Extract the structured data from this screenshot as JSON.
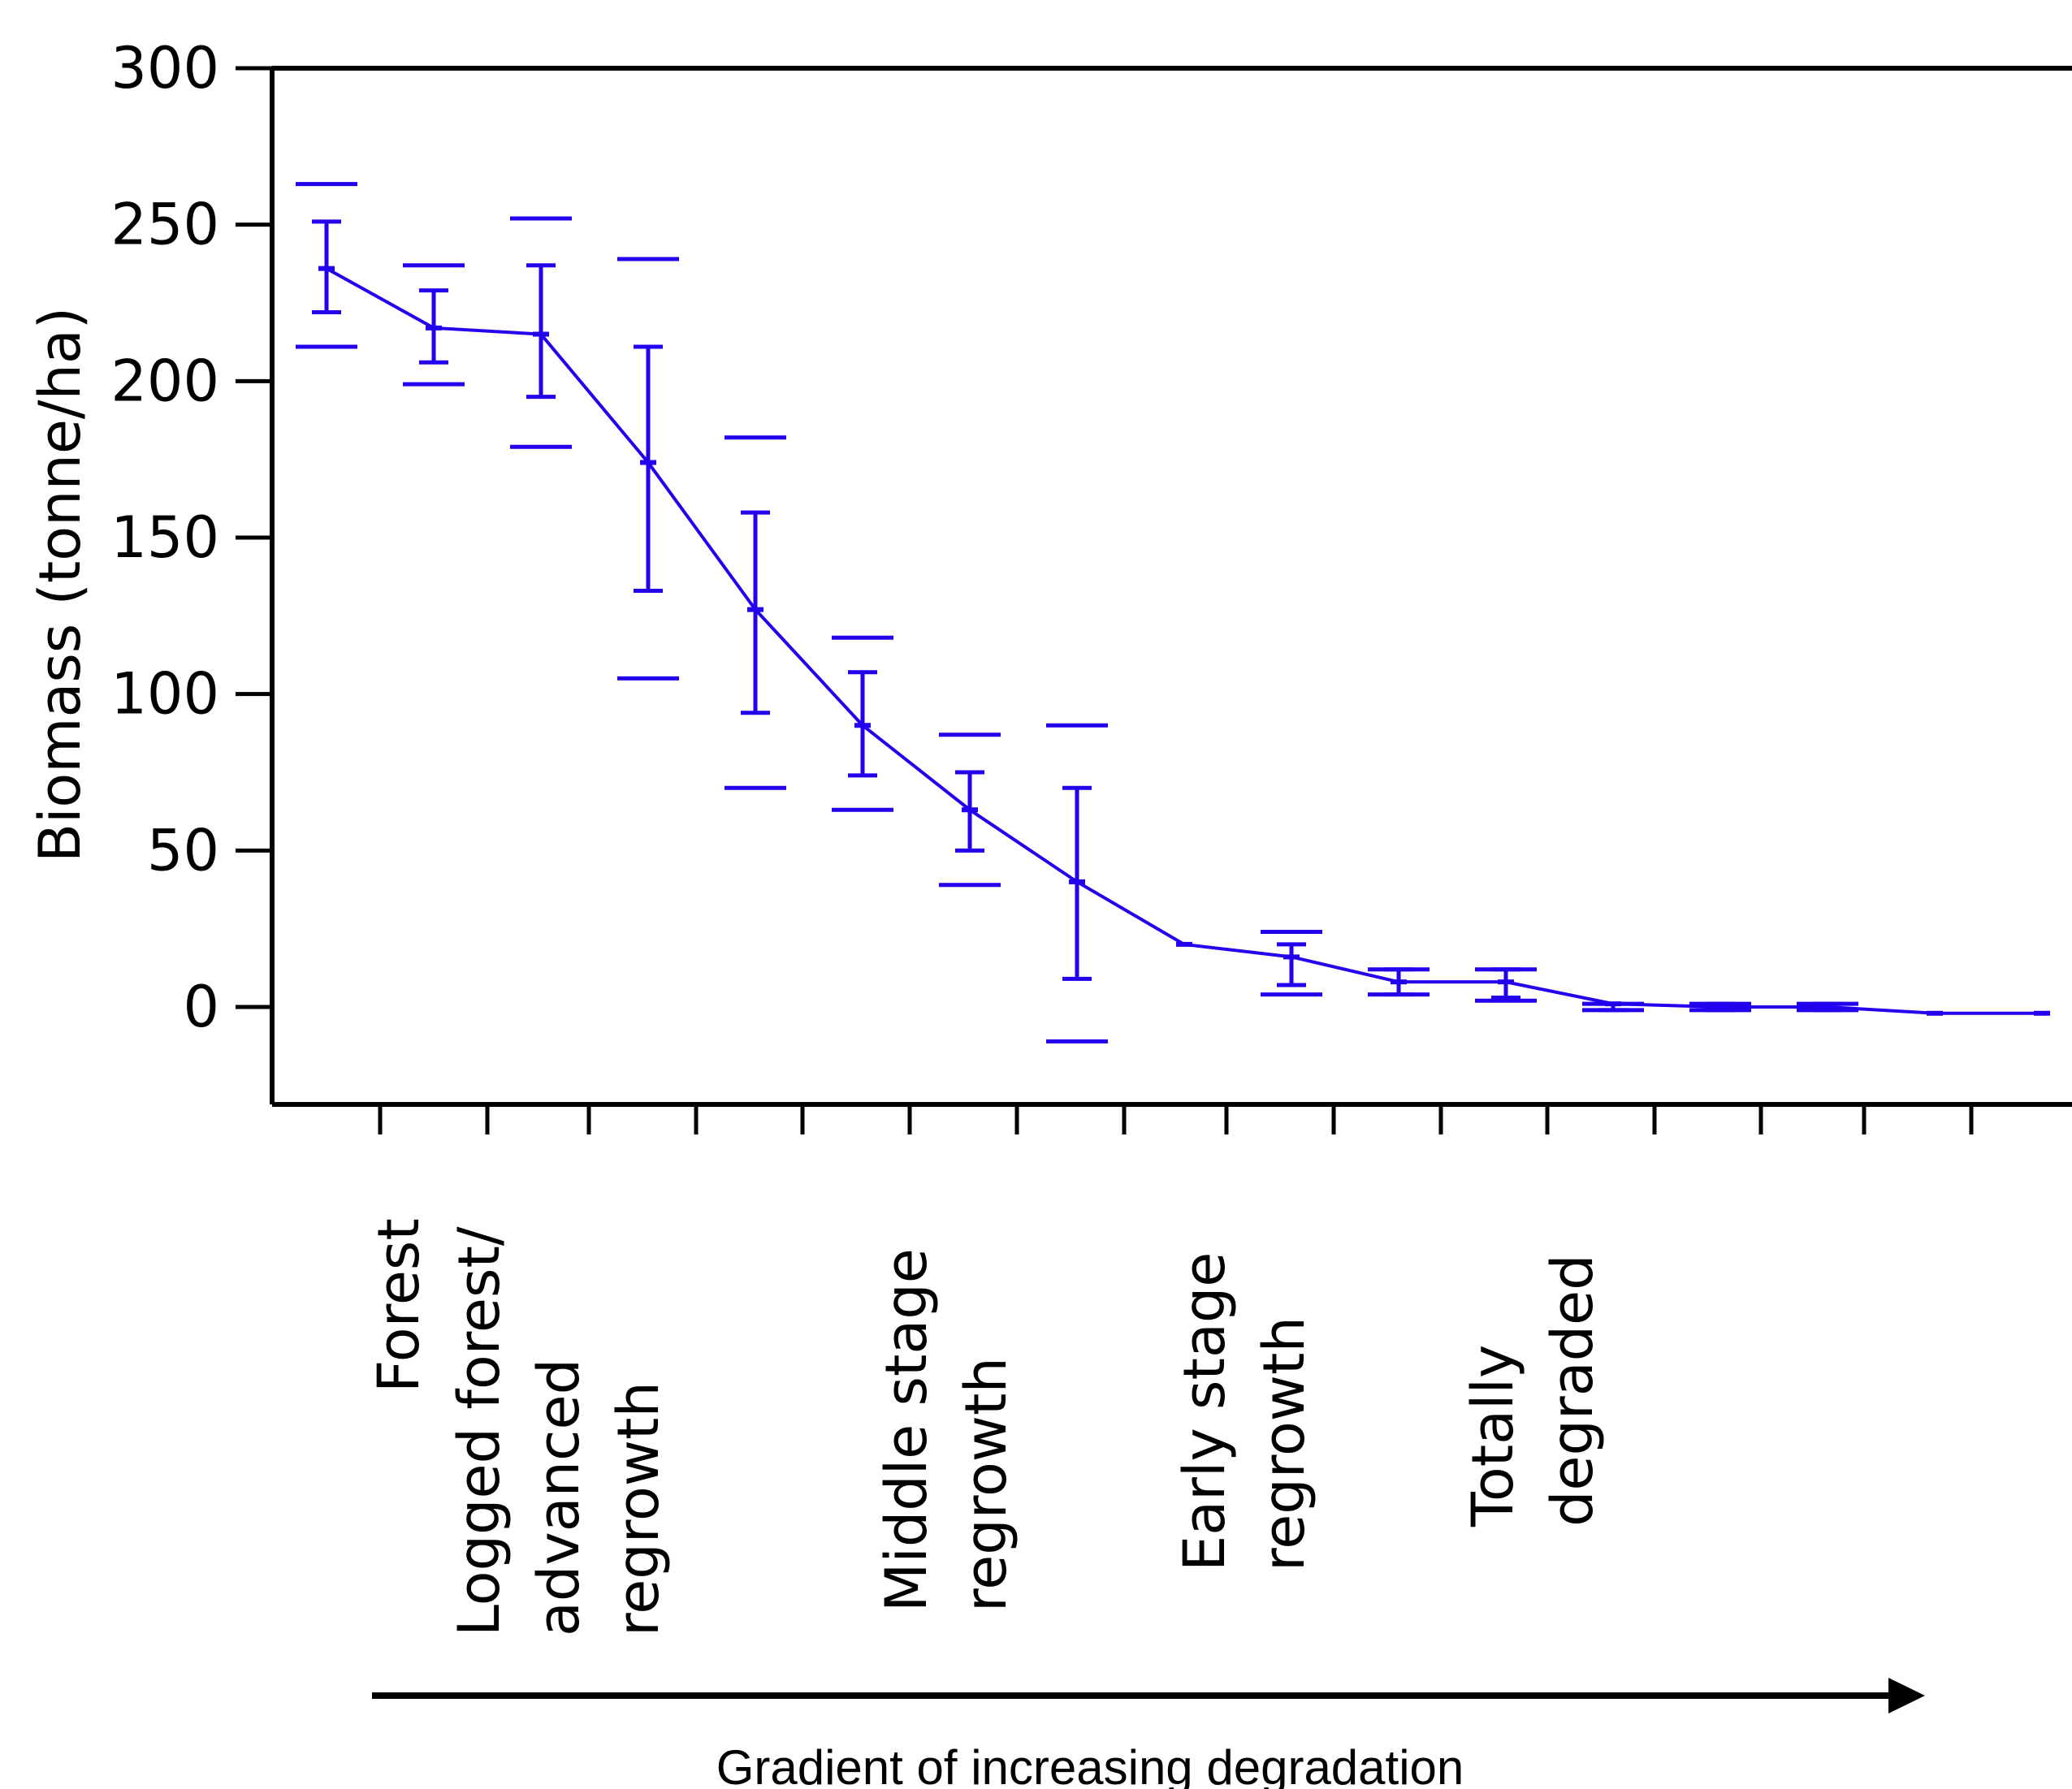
{
  "chart_data": {
    "type": "line",
    "title": "",
    "xlabel": "Gradient of increasing degradation",
    "ylabel": "Biomass (tonne/ha)",
    "ylim": [
      -31,
      300
    ],
    "yticks": [
      0,
      50,
      100,
      150,
      200,
      250,
      300
    ],
    "grid": false,
    "color": "#2200ee",
    "category_labels": [
      {
        "lines": [
          "Forest"
        ]
      },
      {
        "lines": [
          "Logged forest/",
          "advanced",
          "regrowth"
        ]
      },
      {
        "lines": [
          "Middle stage",
          "regrowth"
        ]
      },
      {
        "lines": [
          "Early stage",
          "regrowth"
        ]
      },
      {
        "lines": [
          "Totally",
          "degraded"
        ]
      }
    ],
    "series": [
      {
        "x": [
          1,
          2,
          3,
          4,
          5,
          6,
          7,
          8,
          9,
          10,
          11,
          12,
          13,
          14,
          15,
          16,
          17
        ],
        "values": [
          236,
          217,
          215,
          174,
          127,
          90,
          63,
          40,
          20,
          16,
          8,
          8,
          1,
          0,
          0,
          -2,
          -2
        ],
        "ci_low": [
          222,
          206,
          195,
          133,
          94,
          74,
          50,
          9,
          null,
          7,
          4,
          3,
          -1,
          -1,
          -1,
          null,
          null
        ],
        "ci_high": [
          251,
          229,
          237,
          211,
          158,
          107,
          75,
          70,
          null,
          20,
          12,
          12,
          1,
          1,
          1,
          null,
          null
        ],
        "pi_low": [
          211,
          199,
          179,
          105,
          70,
          63,
          39,
          -11,
          null,
          4,
          4,
          2,
          -1,
          -1,
          -1,
          null,
          null
        ],
        "pi_high": [
          263,
          237,
          252,
          239,
          182,
          118,
          87,
          90,
          null,
          24,
          12,
          12,
          1,
          1,
          1,
          null,
          null
        ]
      }
    ]
  }
}
